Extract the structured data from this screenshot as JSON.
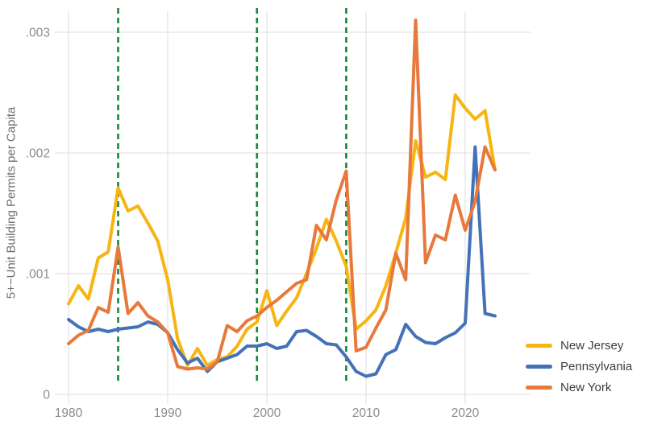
{
  "figure": {
    "background": "#ffffff"
  },
  "y_axis_title": "5+−Unit Building Permits per Capita",
  "legend": [
    {
      "label": "New Jersey",
      "color": "#F7B512"
    },
    {
      "label": "Pennsylvania",
      "color": "#4472B8"
    },
    {
      "label": "New York",
      "color": "#E8793C"
    }
  ],
  "chart_data": {
    "type": "line",
    "title": "",
    "xlabel": "",
    "ylabel": "5+−Unit Building Permits per Capita",
    "grid": true,
    "legend_position": "right",
    "xlim": [
      1979.5,
      2026.5
    ],
    "ylim": [
      0,
      0.0032
    ],
    "xticks": [
      1980,
      1990,
      2000,
      2010,
      2020
    ],
    "yticks": [
      0,
      0.001,
      0.002,
      0.003
    ],
    "ytick_labels": [
      "0",
      ".001",
      ".002",
      ".003"
    ],
    "vlines": [
      {
        "x": 1985,
        "color": "#128A38",
        "style": "dashed"
      },
      {
        "x": 1999,
        "color": "#128A38",
        "style": "dashed"
      },
      {
        "x": 2008,
        "color": "#128A38",
        "style": "dashed"
      }
    ],
    "x": [
      1980,
      1981,
      1982,
      1983,
      1984,
      1985,
      1986,
      1987,
      1988,
      1989,
      1990,
      1991,
      1992,
      1993,
      1994,
      1995,
      1996,
      1997,
      1998,
      1999,
      2000,
      2001,
      2002,
      2003,
      2004,
      2005,
      2006,
      2007,
      2008,
      2009,
      2010,
      2011,
      2012,
      2013,
      2014,
      2015,
      2016,
      2017,
      2018,
      2019,
      2020,
      2021,
      2022,
      2023
    ],
    "series": [
      {
        "name": "New Jersey",
        "color": "#F7B512",
        "values": [
          0.00075,
          0.0009,
          0.00079,
          0.00113,
          0.00118,
          0.00171,
          0.00152,
          0.00156,
          0.00142,
          0.00127,
          0.00095,
          0.00046,
          0.00024,
          0.00038,
          0.00024,
          0.00029,
          0.00031,
          0.0004,
          0.00054,
          0.0006,
          0.00086,
          0.00057,
          0.00069,
          0.0008,
          0.001,
          0.00121,
          0.00145,
          0.00127,
          0.00106,
          0.00054,
          0.00061,
          0.0007,
          0.0009,
          0.00117,
          0.00146,
          0.0021,
          0.0018,
          0.00184,
          0.00178,
          0.00248,
          0.00237,
          0.00228,
          0.00235,
          0.00186
        ]
      },
      {
        "name": "Pennsylvania",
        "color": "#4472B8",
        "values": [
          0.00062,
          0.00056,
          0.00052,
          0.00054,
          0.00052,
          0.00054,
          0.00055,
          0.00056,
          0.0006,
          0.00058,
          0.00051,
          0.00037,
          0.00026,
          0.0003,
          0.00019,
          0.00027,
          0.0003,
          0.00033,
          0.0004,
          0.0004,
          0.00042,
          0.00038,
          0.0004,
          0.00052,
          0.00053,
          0.00048,
          0.00042,
          0.00041,
          0.00031,
          0.00019,
          0.00015,
          0.00017,
          0.00033,
          0.00037,
          0.00058,
          0.00048,
          0.00043,
          0.00042,
          0.00047,
          0.00051,
          0.00059,
          0.00205,
          0.00067,
          0.00065
        ]
      },
      {
        "name": "New York",
        "color": "#E8793C",
        "values": [
          0.00042,
          0.00049,
          0.00053,
          0.00072,
          0.00068,
          0.00122,
          0.00067,
          0.00076,
          0.00065,
          0.0006,
          0.00051,
          0.00023,
          0.00021,
          0.00022,
          0.00021,
          0.00027,
          0.00057,
          0.00052,
          0.00061,
          0.00065,
          0.00072,
          0.00078,
          0.00085,
          0.00092,
          0.00095,
          0.0014,
          0.00128,
          0.00161,
          0.00185,
          0.00036,
          0.00039,
          0.00055,
          0.0007,
          0.00117,
          0.00095,
          0.0031,
          0.00109,
          0.00132,
          0.00128,
          0.00165,
          0.00136,
          0.0016,
          0.00205,
          0.00186
        ]
      }
    ]
  }
}
